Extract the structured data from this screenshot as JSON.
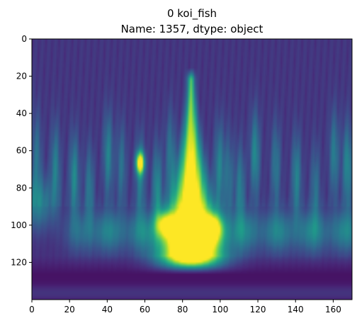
{
  "chart_data": {
    "type": "heatmap",
    "title_line1": "0    koi_fish",
    "title_line2": "Name: 1357, dtype: object",
    "xlabel": "",
    "ylabel": "",
    "xlim": [
      0,
      170
    ],
    "ylim": [
      140,
      0
    ],
    "x_ticks": [
      0,
      20,
      40,
      60,
      80,
      100,
      120,
      140,
      160
    ],
    "y_ticks": [
      0,
      20,
      40,
      60,
      80,
      100,
      120
    ],
    "colormap": "viridis",
    "grid": false,
    "image_width": 170,
    "image_height": 140,
    "background_level": 0.12,
    "features": {
      "central_plume": {
        "x_center": 84,
        "y_top": 22,
        "y_bottom": 120,
        "peak": 1.0
      },
      "bottom_band": {
        "y_center": 103,
        "x_from": 20,
        "x_to": 170,
        "level": 0.32
      },
      "vertical_streaks_x": [
        2,
        12,
        22,
        30,
        40,
        47,
        57,
        66,
        73,
        99,
        104,
        110,
        118,
        129,
        140,
        150,
        160,
        167
      ],
      "bright_spot": {
        "x": 57,
        "y": 66,
        "level": 0.85
      },
      "dark_floor": {
        "y_from": 122,
        "y_to": 140,
        "level": 0.05
      }
    },
    "viridis_stops": [
      "#440154",
      "#482878",
      "#3e4989",
      "#31688e",
      "#26828e",
      "#1f9e89",
      "#35b779",
      "#6ece58",
      "#b5de2b",
      "#fde725"
    ]
  }
}
